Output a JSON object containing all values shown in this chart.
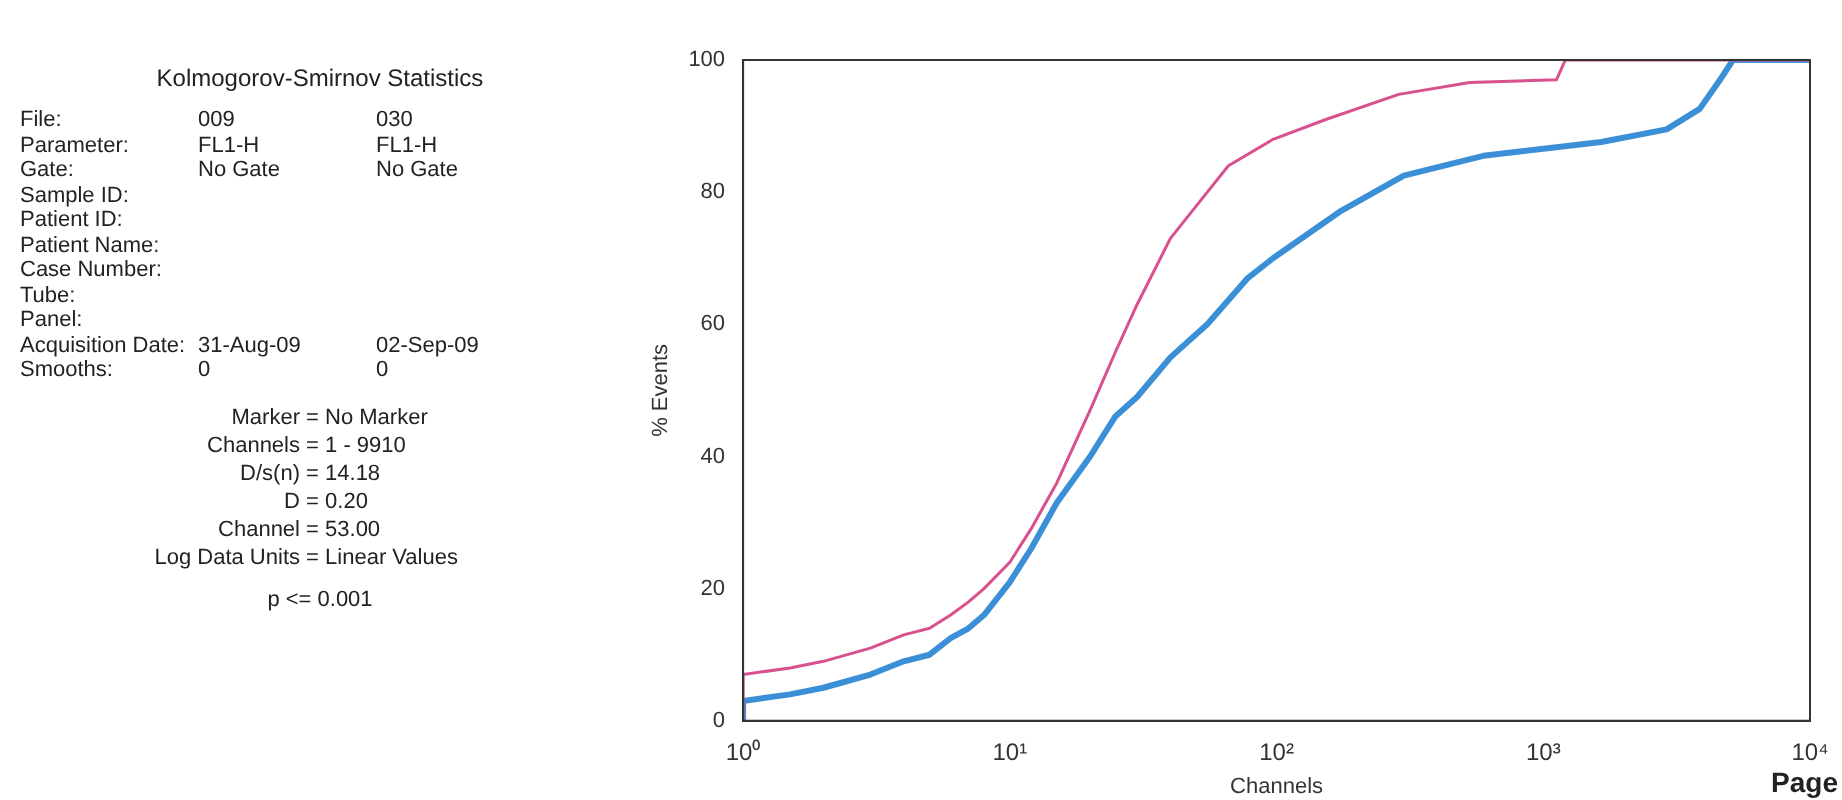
{
  "chart_data": {
    "type": "line",
    "title": "Kolmogorov-Smirnov Statistics",
    "xlabel": "Channels",
    "ylabel": "% Events",
    "log": "x",
    "xlim": [
      1,
      10000
    ],
    "xticks": [
      {
        "value": 1,
        "label": "10⁰"
      },
      {
        "value": 10,
        "label": "10¹"
      },
      {
        "value": 100,
        "label": "10²"
      },
      {
        "value": 1000,
        "label": "10³"
      },
      {
        "value": 10000,
        "label": "10⁴"
      }
    ],
    "ylim": [
      0,
      100
    ],
    "yticks": [
      0,
      20,
      40,
      60,
      80,
      100
    ],
    "grid": false,
    "legend": false,
    "marker": "none",
    "line_style": "solid",
    "series": [
      {
        "color": "#d9508f",
        "x": [
          1,
          1,
          1.5,
          2,
          3,
          4,
          5,
          6,
          7,
          8,
          10,
          12,
          15,
          20,
          25,
          30,
          40,
          55,
          66,
          97,
          153,
          287,
          530,
          1120,
          1210,
          10000
        ],
        "values": [
          0,
          7,
          8,
          9,
          11,
          13,
          14,
          16,
          18,
          20,
          24,
          29,
          36,
          47,
          56,
          63,
          73,
          80,
          84,
          88,
          91,
          94.8,
          96.6,
          97,
          100,
          100
        ]
      },
      {
        "color": "#3b8fd6",
        "x": [
          1,
          1,
          1.5,
          2,
          3,
          4,
          5,
          6,
          7,
          8,
          10,
          12,
          15,
          20,
          24.8,
          30,
          40,
          55,
          78,
          97,
          172,
          300,
          596,
          1650,
          2900,
          3860,
          4600,
          5140,
          10000
        ],
        "values": [
          0,
          3,
          4,
          5,
          7,
          9,
          10,
          12.5,
          14,
          16,
          21,
          26,
          33,
          40,
          46,
          49,
          55,
          60,
          67,
          70,
          77,
          82.5,
          85.5,
          87.6,
          89.5,
          92.6,
          97,
          100,
          100
        ]
      }
    ],
    "annotations": [
      "File:\t009\t030",
      "Parameter:\tFL1-H\tFL1-H",
      "Gate:\tNo Gate\tNo Gate",
      "Sample ID:",
      "Patient ID:",
      "Patient Name:",
      "Case Number:",
      "Tube:",
      "Panel:",
      "Acquisition Date:\t31-Aug-09\t02-Sep-09",
      "Smooths:\t0\t0",
      "Marker = No Marker",
      "Channels = 1 - 9910",
      "D/s(n) = 14.18",
      "D = 0.20",
      "Channel = 53.00",
      "Log Data Units = Linear Values",
      "p <= 0.001",
      "Page"
    ]
  }
}
